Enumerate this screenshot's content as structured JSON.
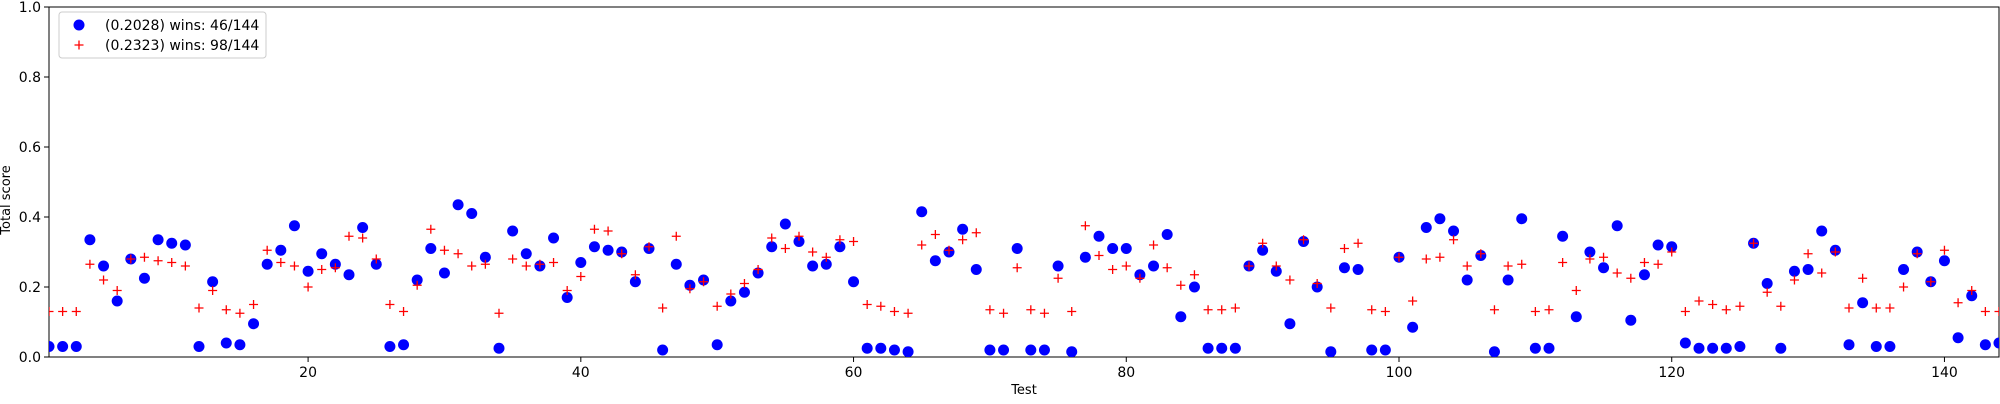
{
  "chart_data": {
    "type": "scatter",
    "xlabel": "Test",
    "ylabel": "Total score",
    "xlim": [
      1,
      144
    ],
    "ylim": [
      0,
      1.0
    ],
    "x_ticks": [
      20,
      40,
      60,
      80,
      100,
      120,
      140
    ],
    "y_ticks": [
      0.0,
      0.2,
      0.4,
      0.6,
      0.8,
      1.0
    ],
    "y_tick_labels": [
      "0.0",
      "0.2",
      "0.4",
      "0.6",
      "0.8",
      "1.0"
    ],
    "grid": false,
    "legend_position": "top-left",
    "series": [
      {
        "name": "(0.2028) wins: 46/144",
        "marker": "circle",
        "color": "#0000ff",
        "y": [
          0.03,
          0.03,
          0.03,
          0.335,
          0.26,
          0.16,
          0.28,
          0.225,
          0.335,
          0.325,
          0.32,
          0.03,
          0.215,
          0.04,
          0.035,
          0.095,
          0.265,
          0.305,
          0.375,
          0.245,
          0.295,
          0.265,
          0.235,
          0.37,
          0.265,
          0.03,
          0.035,
          0.22,
          0.31,
          0.24,
          0.435,
          0.41,
          0.285,
          0.025,
          0.36,
          0.295,
          0.26,
          0.34,
          0.17,
          0.27,
          0.315,
          0.305,
          0.3,
          0.215,
          0.31,
          0.02,
          0.265,
          0.205,
          0.22,
          0.035,
          0.16,
          0.185,
          0.24,
          0.315,
          0.38,
          0.33,
          0.26,
          0.265,
          0.315,
          0.215,
          0.025,
          0.025,
          0.02,
          0.015,
          0.415,
          0.275,
          0.3,
          0.365,
          0.25,
          0.02,
          0.02,
          0.31,
          0.02,
          0.02,
          0.26,
          0.015,
          0.285,
          0.345,
          0.31,
          0.31,
          0.235,
          0.26,
          0.35,
          0.115,
          0.2,
          0.025,
          0.025,
          0.025,
          0.26,
          0.305,
          0.245,
          0.095,
          0.33,
          0.2,
          0.015,
          0.255,
          0.25,
          0.02,
          0.02,
          0.285,
          0.085,
          0.37,
          0.395,
          0.36,
          0.22,
          0.29,
          0.015,
          0.22,
          0.395,
          0.025,
          0.025,
          0.345,
          0.115,
          0.3,
          0.255,
          0.375,
          0.105,
          0.235,
          0.32,
          0.315,
          0.04,
          0.025,
          0.025,
          0.025,
          0.03,
          0.325,
          0.21,
          0.025,
          0.245,
          0.25,
          0.36,
          0.305,
          0.035,
          0.155,
          0.03,
          0.03,
          0.25,
          0.3,
          0.215,
          0.275,
          0.055,
          0.175,
          0.035,
          0.04
        ]
      },
      {
        "name": "(0.2323) wins: 98/144",
        "marker": "plus",
        "color": "#ff0000",
        "y": [
          0.13,
          0.13,
          0.13,
          0.265,
          0.22,
          0.19,
          0.28,
          0.285,
          0.275,
          0.27,
          0.26,
          0.14,
          0.19,
          0.135,
          0.125,
          0.15,
          0.305,
          0.27,
          0.26,
          0.2,
          0.25,
          0.255,
          0.345,
          0.34,
          0.28,
          0.15,
          0.13,
          0.205,
          0.365,
          0.305,
          0.295,
          0.26,
          0.265,
          0.125,
          0.28,
          0.26,
          0.265,
          0.27,
          0.19,
          0.23,
          0.365,
          0.36,
          0.295,
          0.235,
          0.315,
          0.14,
          0.345,
          0.195,
          0.215,
          0.145,
          0.18,
          0.21,
          0.25,
          0.34,
          0.31,
          0.345,
          0.3,
          0.285,
          0.335,
          0.33,
          0.15,
          0.145,
          0.13,
          0.125,
          0.32,
          0.35,
          0.305,
          0.335,
          0.355,
          0.135,
          0.125,
          0.255,
          0.135,
          0.125,
          0.225,
          0.13,
          0.375,
          0.29,
          0.25,
          0.26,
          0.225,
          0.32,
          0.255,
          0.205,
          0.235,
          0.135,
          0.135,
          0.14,
          0.26,
          0.325,
          0.26,
          0.22,
          0.335,
          0.21,
          0.14,
          0.31,
          0.325,
          0.135,
          0.13,
          0.285,
          0.16,
          0.28,
          0.285,
          0.335,
          0.26,
          0.295,
          0.135,
          0.26,
          0.265,
          0.13,
          0.135,
          0.27,
          0.19,
          0.28,
          0.285,
          0.24,
          0.225,
          0.27,
          0.265,
          0.3,
          0.13,
          0.16,
          0.15,
          0.135,
          0.145,
          0.325,
          0.185,
          0.145,
          0.22,
          0.295,
          0.24,
          0.3,
          0.14,
          0.225,
          0.14,
          0.14,
          0.2,
          0.295,
          0.215,
          0.305,
          0.155,
          0.19,
          0.13,
          0.13
        ]
      }
    ]
  }
}
